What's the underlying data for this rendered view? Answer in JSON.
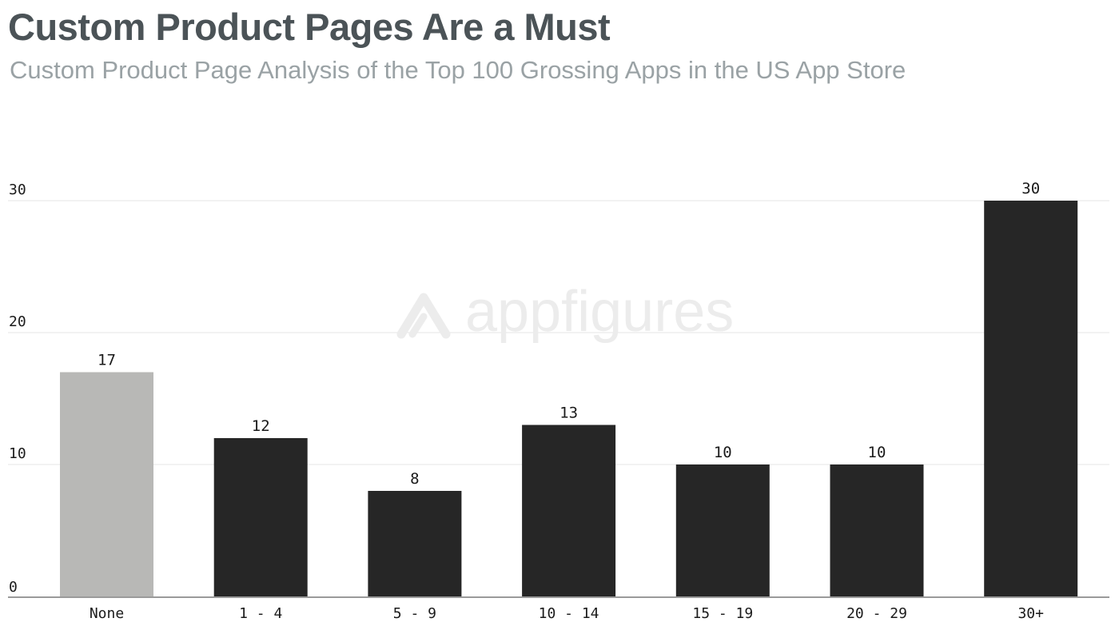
{
  "title": "Custom Product Pages Are a Must",
  "subtitle": "Custom Product Page Analysis of the Top 100 Grossing Apps in the US App Store",
  "watermark": {
    "logo_icon": "appfigures-logo-icon",
    "text": "appfigures"
  },
  "colors": {
    "bar_default": "#262626",
    "bar_highlight": "#b8b8b6",
    "gridline": "#e4e4e4",
    "axis": "#9a9a9a",
    "tick_text": "#1a1a1a",
    "watermark": "#ececec"
  },
  "chart_data": {
    "type": "bar",
    "title": "Custom Product Pages Are a Must",
    "subtitle": "Custom Product Page Analysis of the Top 100 Grossing Apps in the US App Store",
    "xlabel": "",
    "ylabel": "",
    "categories": [
      "None",
      "1 - 4",
      "5 - 9",
      "10 - 14",
      "15 - 19",
      "20 - 29",
      "30+"
    ],
    "values": [
      17,
      12,
      8,
      13,
      10,
      10,
      30
    ],
    "data_labels": [
      "17",
      "12",
      "8",
      "13",
      "10",
      "10",
      "30"
    ],
    "highlight_index": 0,
    "ylim": [
      0,
      30
    ],
    "yticks": [
      0,
      10,
      20,
      30
    ],
    "ytick_labels": [
      "0",
      "10",
      "20",
      "30"
    ],
    "grid": true,
    "legend": "none"
  }
}
